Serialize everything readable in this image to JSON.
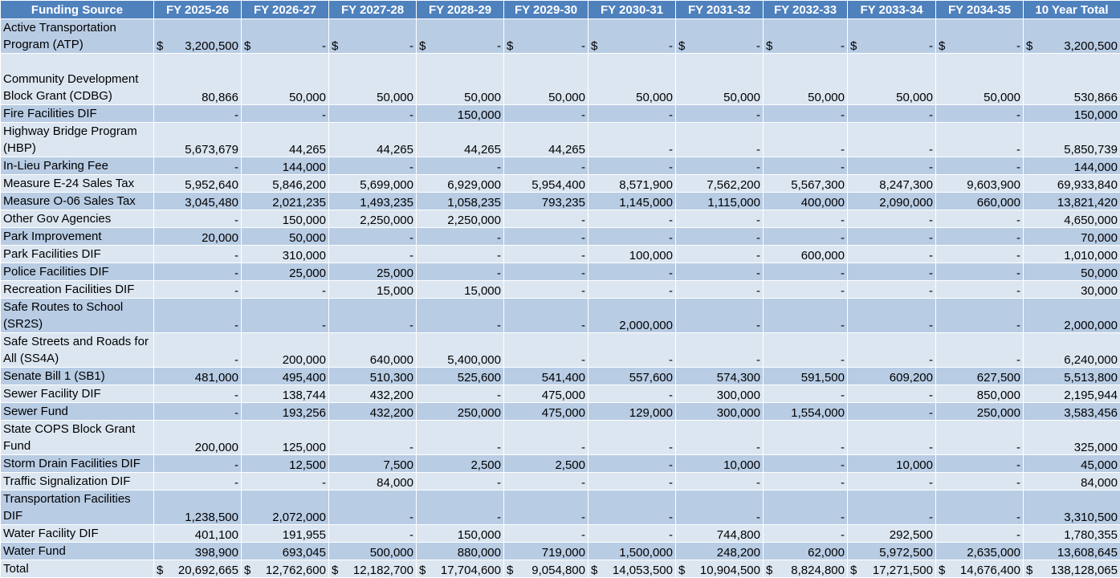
{
  "columns": [
    "Funding Source",
    "FY 2025-26",
    "FY 2026-27",
    "FY 2027-28",
    "FY 2028-29",
    "FY 2029-30",
    "FY 2030-31",
    "FY 2031-32",
    "FY 2032-33",
    "FY 2033-34",
    "FY 2034-35",
    "10 Year Total"
  ],
  "rows": [
    {
      "source": "Active Transportation Program (ATP)",
      "values": [
        "3,200,500",
        "-",
        "-",
        "-",
        "-",
        "-",
        "-",
        "-",
        "-",
        "-",
        "3,200,500"
      ]
    },
    {
      "source": "Community Development Block Grant (CDBG)",
      "values": [
        "80,866",
        "50,000",
        "50,000",
        "50,000",
        "50,000",
        "50,000",
        "50,000",
        "50,000",
        "50,000",
        "50,000",
        "530,866"
      ]
    },
    {
      "source": "Fire Facilities DIF",
      "values": [
        "-",
        "-",
        "-",
        "150,000",
        "-",
        "-",
        "-",
        "-",
        "-",
        "-",
        "150,000"
      ]
    },
    {
      "source": "Highway Bridge Program (HBP)",
      "values": [
        "5,673,679",
        "44,265",
        "44,265",
        "44,265",
        "44,265",
        "-",
        "-",
        "-",
        "-",
        "-",
        "5,850,739"
      ]
    },
    {
      "source": "In-Lieu Parking Fee",
      "values": [
        "-",
        "144,000",
        "-",
        "-",
        "-",
        "-",
        "-",
        "-",
        "-",
        "-",
        "144,000"
      ]
    },
    {
      "source": "Measure E-24 Sales Tax",
      "values": [
        "5,952,640",
        "5,846,200",
        "5,699,000",
        "6,929,000",
        "5,954,400",
        "8,571,900",
        "7,562,200",
        "5,567,300",
        "8,247,300",
        "9,603,900",
        "69,933,840"
      ]
    },
    {
      "source": "Measure O-06 Sales Tax",
      "values": [
        "3,045,480",
        "2,021,235",
        "1,493,235",
        "1,058,235",
        "793,235",
        "1,145,000",
        "1,115,000",
        "400,000",
        "2,090,000",
        "660,000",
        "13,821,420"
      ]
    },
    {
      "source": "Other Gov Agencies",
      "values": [
        "-",
        "150,000",
        "2,250,000",
        "2,250,000",
        "-",
        "-",
        "-",
        "-",
        "-",
        "-",
        "4,650,000"
      ]
    },
    {
      "source": "Park Improvement",
      "values": [
        "20,000",
        "50,000",
        "-",
        "-",
        "-",
        "-",
        "-",
        "-",
        "-",
        "-",
        "70,000"
      ]
    },
    {
      "source": "Park Facilities DIF",
      "values": [
        "-",
        "310,000",
        "-",
        "-",
        "-",
        "100,000",
        "-",
        "600,000",
        "-",
        "-",
        "1,010,000"
      ]
    },
    {
      "source": "Police Facilities DIF",
      "values": [
        "-",
        "25,000",
        "25,000",
        "-",
        "-",
        "-",
        "-",
        "-",
        "-",
        "-",
        "50,000"
      ]
    },
    {
      "source": "Recreation Facilities DIF",
      "values": [
        "-",
        "-",
        "15,000",
        "15,000",
        "-",
        "-",
        "-",
        "-",
        "-",
        "-",
        "30,000"
      ]
    },
    {
      "source": "Safe Routes to School (SR2S)",
      "values": [
        "-",
        "-",
        "-",
        "-",
        "-",
        "2,000,000",
        "-",
        "-",
        "-",
        "-",
        "2,000,000"
      ]
    },
    {
      "source": "Safe Streets and Roads for All (SS4A)",
      "values": [
        "-",
        "200,000",
        "640,000",
        "5,400,000",
        "-",
        "-",
        "-",
        "-",
        "-",
        "-",
        "6,240,000"
      ]
    },
    {
      "source": "Senate Bill 1 (SB1)",
      "values": [
        "481,000",
        "495,400",
        "510,300",
        "525,600",
        "541,400",
        "557,600",
        "574,300",
        "591,500",
        "609,200",
        "627,500",
        "5,513,800"
      ]
    },
    {
      "source": "Sewer Facility DIF",
      "values": [
        "-",
        "138,744",
        "432,200",
        "-",
        "475,000",
        "-",
        "300,000",
        "-",
        "-",
        "850,000",
        "2,195,944"
      ]
    },
    {
      "source": "Sewer Fund",
      "values": [
        "-",
        "193,256",
        "432,200",
        "250,000",
        "475,000",
        "129,000",
        "300,000",
        "1,554,000",
        "-",
        "250,000",
        "3,583,456"
      ]
    },
    {
      "source": "State COPS Block Grant Fund",
      "values": [
        "200,000",
        "125,000",
        "-",
        "-",
        "-",
        "-",
        "-",
        "-",
        "-",
        "-",
        "325,000"
      ]
    },
    {
      "source": "Storm Drain Facilities DIF",
      "values": [
        "-",
        "12,500",
        "7,500",
        "2,500",
        "2,500",
        "-",
        "10,000",
        "-",
        "10,000",
        "-",
        "45,000"
      ]
    },
    {
      "source": "Traffic Signalization DIF",
      "values": [
        "-",
        "-",
        "84,000",
        "-",
        "-",
        "-",
        "-",
        "-",
        "-",
        "-",
        "84,000"
      ]
    },
    {
      "source": "Transportation Facilities DIF",
      "values": [
        "1,238,500",
        "2,072,000",
        "-",
        "-",
        "-",
        "-",
        "-",
        "-",
        "-",
        "-",
        "3,310,500"
      ]
    },
    {
      "source": "Water Facility DIF",
      "values": [
        "401,100",
        "191,955",
        "-",
        "150,000",
        "-",
        "-",
        "744,800",
        "-",
        "292,500",
        "-",
        "1,780,355"
      ]
    },
    {
      "source": "Water Fund",
      "values": [
        "398,900",
        "693,045",
        "500,000",
        "880,000",
        "719,000",
        "1,500,000",
        "248,200",
        "62,000",
        "5,972,500",
        "2,635,000",
        "13,608,645"
      ]
    }
  ],
  "total": {
    "label": "Total",
    "values": [
      "20,692,665",
      "12,762,600",
      "12,182,700",
      "17,704,600",
      "9,054,800",
      "14,053,500",
      "10,904,500",
      "8,824,800",
      "17,271,500",
      "14,676,400",
      "138,128,065"
    ]
  },
  "currency_symbol": "$",
  "colors": {
    "header_bg": "#4f81bd",
    "row_dark": "#b8cce4",
    "row_light": "#dce6f1",
    "header_text": "#ffffff"
  }
}
